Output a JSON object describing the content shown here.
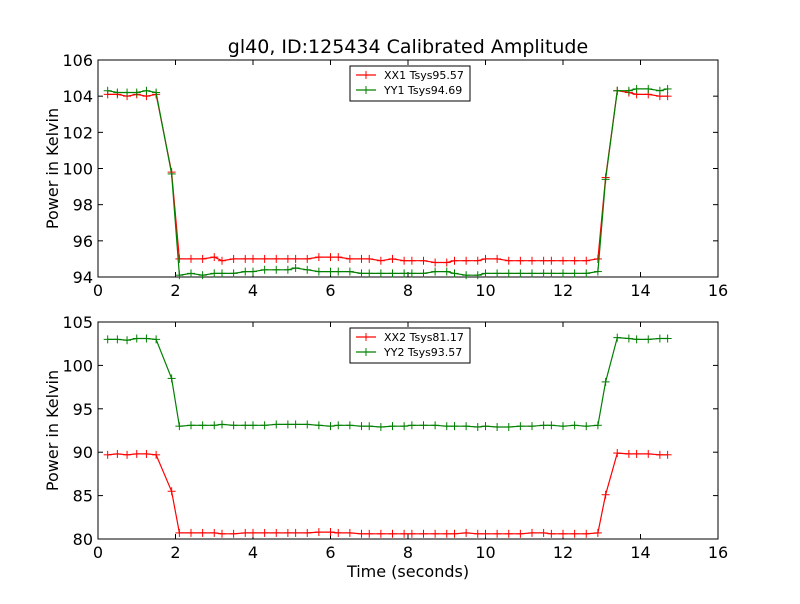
{
  "chart_data": [
    {
      "type": "line",
      "title": "gl40, ID:125434 Calibrated Amplitude",
      "xlabel": "",
      "ylabel": "Power in Kelvin",
      "xlim": [
        0,
        16
      ],
      "ylim": [
        94,
        106
      ],
      "xticks": [
        0,
        2,
        4,
        6,
        8,
        10,
        12,
        14,
        16
      ],
      "yticks": [
        94,
        96,
        98,
        100,
        102,
        104,
        106
      ],
      "grid": false,
      "legend": "top-center",
      "x": [
        0.25,
        0.5,
        0.75,
        1.0,
        1.25,
        1.5,
        1.9,
        2.1,
        2.4,
        2.7,
        3.0,
        3.2,
        3.5,
        3.8,
        4.0,
        4.3,
        4.6,
        4.9,
        5.1,
        5.4,
        5.7,
        6.0,
        6.2,
        6.5,
        6.8,
        7.0,
        7.3,
        7.6,
        7.9,
        8.1,
        8.4,
        8.7,
        9.0,
        9.2,
        9.5,
        9.8,
        10.0,
        10.3,
        10.6,
        10.9,
        11.2,
        11.5,
        11.7,
        12.0,
        12.3,
        12.6,
        12.9,
        13.1,
        13.4,
        13.7,
        13.9,
        14.2,
        14.5,
        14.7
      ],
      "series": [
        {
          "name": "XX1 Tsys95.57",
          "color": "#ff0000",
          "values": [
            104.1,
            104.1,
            104.0,
            104.1,
            104.0,
            104.1,
            99.8,
            95.0,
            95.0,
            95.0,
            95.1,
            94.9,
            95.0,
            95.0,
            95.0,
            95.0,
            95.0,
            95.0,
            95.0,
            95.0,
            95.1,
            95.1,
            95.1,
            95.0,
            95.0,
            95.0,
            94.9,
            95.0,
            94.9,
            94.9,
            94.9,
            94.8,
            94.8,
            94.9,
            94.9,
            94.9,
            95.0,
            95.0,
            94.9,
            94.9,
            94.9,
            94.9,
            94.9,
            94.9,
            94.9,
            94.9,
            95.0,
            99.5,
            104.3,
            104.2,
            104.1,
            104.1,
            104.0,
            104.0
          ]
        },
        {
          "name": "YY1 Tsys94.69",
          "color": "#008000",
          "values": [
            104.3,
            104.2,
            104.2,
            104.2,
            104.3,
            104.2,
            99.7,
            94.1,
            94.2,
            94.1,
            94.2,
            94.2,
            94.2,
            94.3,
            94.3,
            94.4,
            94.4,
            94.4,
            94.5,
            94.4,
            94.3,
            94.3,
            94.3,
            94.3,
            94.2,
            94.2,
            94.2,
            94.2,
            94.2,
            94.2,
            94.2,
            94.3,
            94.3,
            94.2,
            94.1,
            94.1,
            94.2,
            94.2,
            94.2,
            94.2,
            94.2,
            94.2,
            94.2,
            94.2,
            94.2,
            94.2,
            94.3,
            99.4,
            104.3,
            104.3,
            104.4,
            104.4,
            104.3,
            104.4
          ]
        }
      ]
    },
    {
      "type": "line",
      "title": "",
      "xlabel": "Time (seconds)",
      "ylabel": "Power in Kelvin",
      "xlim": [
        0,
        16
      ],
      "ylim": [
        80,
        105
      ],
      "xticks": [
        0,
        2,
        4,
        6,
        8,
        10,
        12,
        14,
        16
      ],
      "yticks": [
        80,
        85,
        90,
        95,
        100,
        105
      ],
      "grid": false,
      "legend": "top-center",
      "x": [
        0.25,
        0.5,
        0.75,
        1.0,
        1.25,
        1.5,
        1.9,
        2.1,
        2.4,
        2.7,
        3.0,
        3.2,
        3.5,
        3.8,
        4.0,
        4.3,
        4.6,
        4.9,
        5.1,
        5.4,
        5.7,
        6.0,
        6.2,
        6.5,
        6.8,
        7.0,
        7.3,
        7.6,
        7.9,
        8.1,
        8.4,
        8.7,
        9.0,
        9.2,
        9.5,
        9.8,
        10.0,
        10.3,
        10.6,
        10.9,
        11.2,
        11.5,
        11.7,
        12.0,
        12.3,
        12.6,
        12.9,
        13.1,
        13.4,
        13.7,
        13.9,
        14.2,
        14.5,
        14.7
      ],
      "series": [
        {
          "name": "XX2 Tsys81.17",
          "color": "#ff0000",
          "values": [
            89.7,
            89.8,
            89.7,
            89.8,
            89.8,
            89.7,
            85.5,
            80.7,
            80.7,
            80.7,
            80.7,
            80.6,
            80.6,
            80.7,
            80.7,
            80.7,
            80.7,
            80.7,
            80.7,
            80.7,
            80.8,
            80.8,
            80.7,
            80.7,
            80.6,
            80.6,
            80.6,
            80.6,
            80.6,
            80.6,
            80.6,
            80.6,
            80.6,
            80.6,
            80.7,
            80.6,
            80.6,
            80.6,
            80.6,
            80.6,
            80.7,
            80.7,
            80.6,
            80.6,
            80.6,
            80.6,
            80.7,
            85.1,
            89.9,
            89.8,
            89.8,
            89.8,
            89.7,
            89.7
          ]
        },
        {
          "name": "YY2 Tsys93.57",
          "color": "#008000",
          "values": [
            103.0,
            103.0,
            102.9,
            103.1,
            103.1,
            103.0,
            98.5,
            93.0,
            93.1,
            93.1,
            93.1,
            93.2,
            93.1,
            93.1,
            93.1,
            93.1,
            93.2,
            93.2,
            93.2,
            93.2,
            93.1,
            93.0,
            93.1,
            93.1,
            93.0,
            93.0,
            92.9,
            93.0,
            93.0,
            93.1,
            93.1,
            93.1,
            93.0,
            93.0,
            93.0,
            92.9,
            93.0,
            92.9,
            92.9,
            93.0,
            93.0,
            93.1,
            93.1,
            93.0,
            93.1,
            93.0,
            93.1,
            98.1,
            103.2,
            103.1,
            103.0,
            103.0,
            103.1,
            103.1
          ]
        }
      ]
    }
  ]
}
